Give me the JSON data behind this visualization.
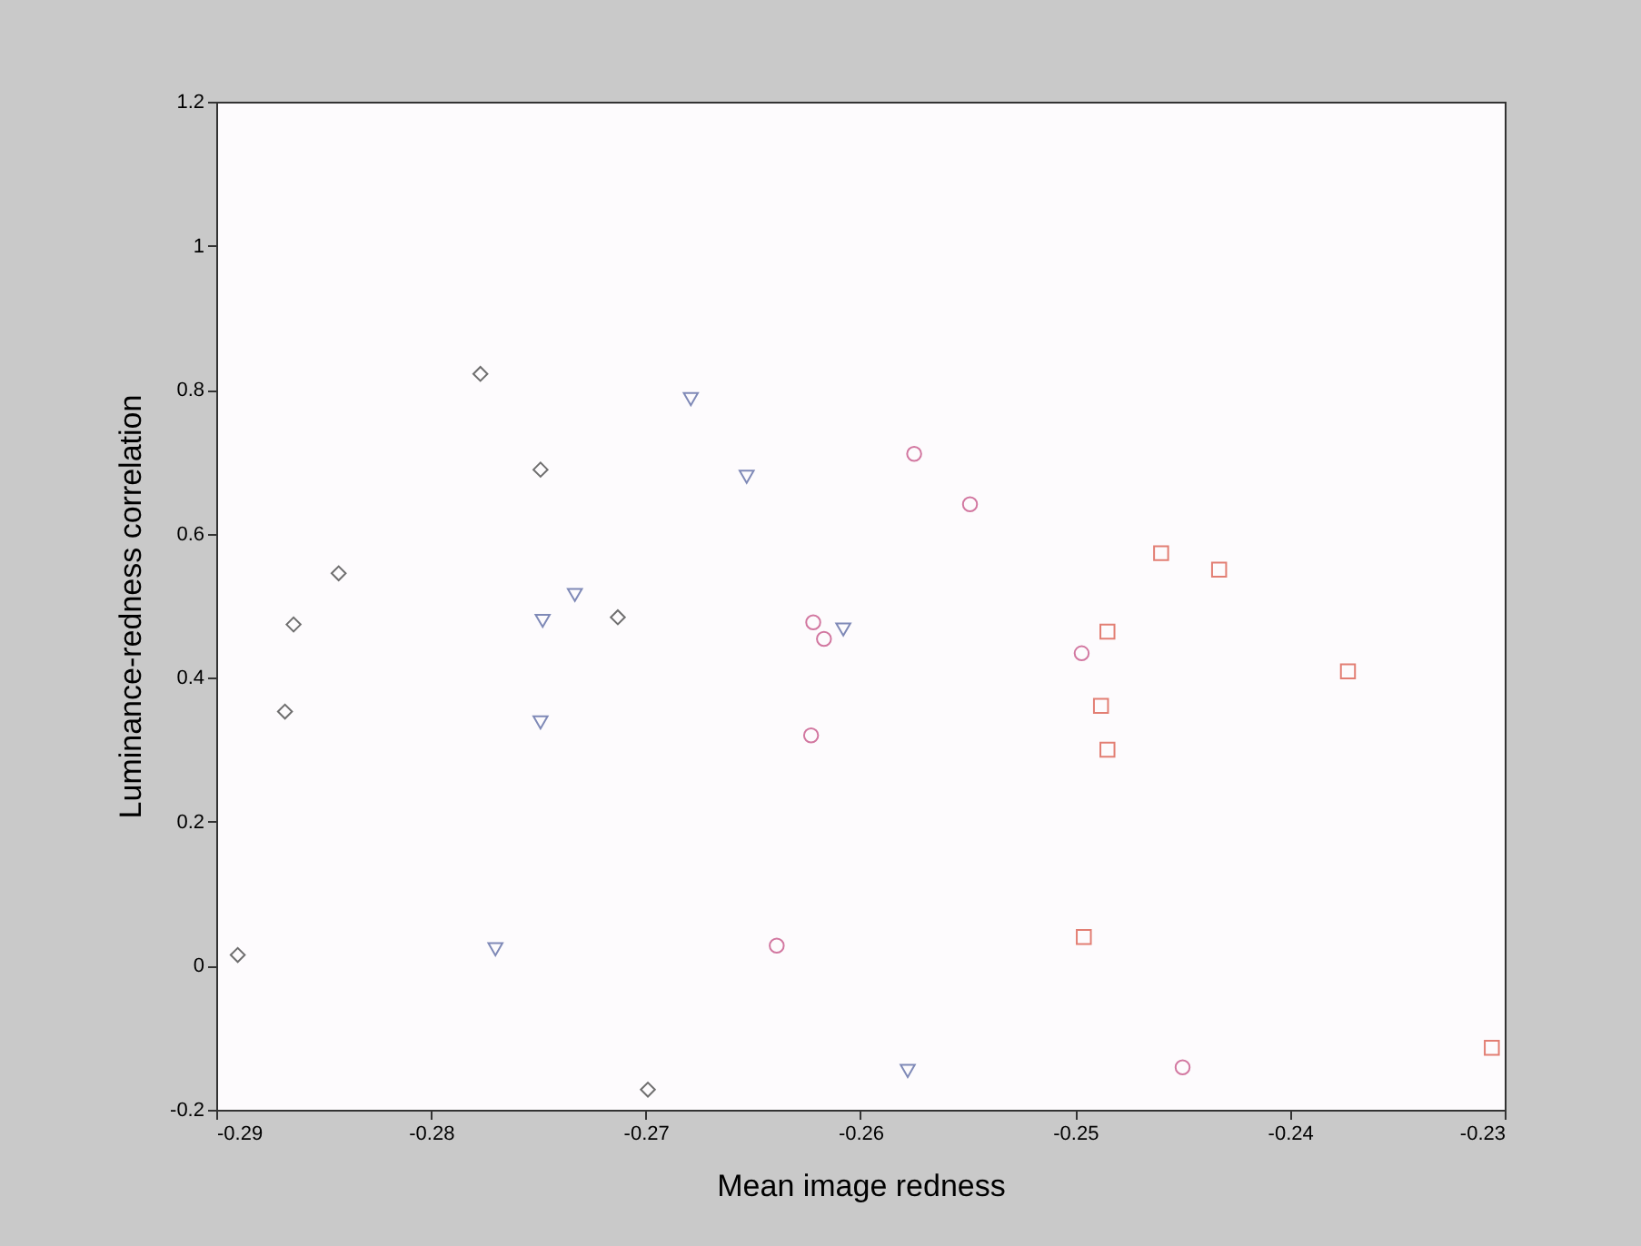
{
  "chart_data": {
    "type": "scatter",
    "xlabel": "Mean image redness",
    "ylabel": "Luminance-redness correlation",
    "xlim": [
      -0.29,
      -0.23
    ],
    "xticks": [
      -0.29,
      -0.28,
      -0.27,
      -0.26,
      -0.25,
      -0.24,
      -0.23
    ],
    "ylim": [
      -0.2,
      1.2
    ],
    "yticks": [
      -0.2,
      0,
      0.2,
      0.4,
      0.6,
      0.8,
      1,
      1.2
    ],
    "grid": false,
    "series": [
      {
        "color": "#333333",
        "marker": "diamond",
        "x": [
          -0.289,
          -0.2868,
          -0.2864,
          -0.2843,
          -0.2777,
          -0.2749,
          -0.2713,
          -0.2699
        ],
        "values": [
          0.015,
          0.353,
          0.474,
          0.545,
          0.822,
          0.689,
          0.484,
          -0.172
        ]
      },
      {
        "color": "#4a5a9a",
        "marker": "triangle",
        "x": [
          -0.2679,
          -0.2653,
          -0.2748,
          -0.2733,
          -0.2749,
          -0.277,
          -0.2608,
          -0.2578
        ],
        "values": [
          0.787,
          0.679,
          0.479,
          0.515,
          0.338,
          0.023,
          0.467,
          -0.146
        ]
      },
      {
        "color": "#c0407a",
        "marker": "circle",
        "x": [
          -0.2575,
          -0.2549,
          -0.2622,
          -0.2617,
          -0.2623,
          -0.2639,
          -0.2497,
          -0.245
        ],
        "values": [
          0.711,
          0.641,
          0.477,
          0.454,
          0.32,
          0.028,
          0.434,
          -0.141
        ]
      },
      {
        "color": "#d84a3a",
        "marker": "square",
        "x": [
          -0.246,
          -0.2433,
          -0.2485,
          -0.2488,
          -0.2485,
          -0.2496,
          -0.2373,
          -0.2306
        ],
        "values": [
          0.573,
          0.55,
          0.464,
          0.361,
          0.3,
          0.04,
          0.409,
          -0.114
        ]
      }
    ]
  }
}
